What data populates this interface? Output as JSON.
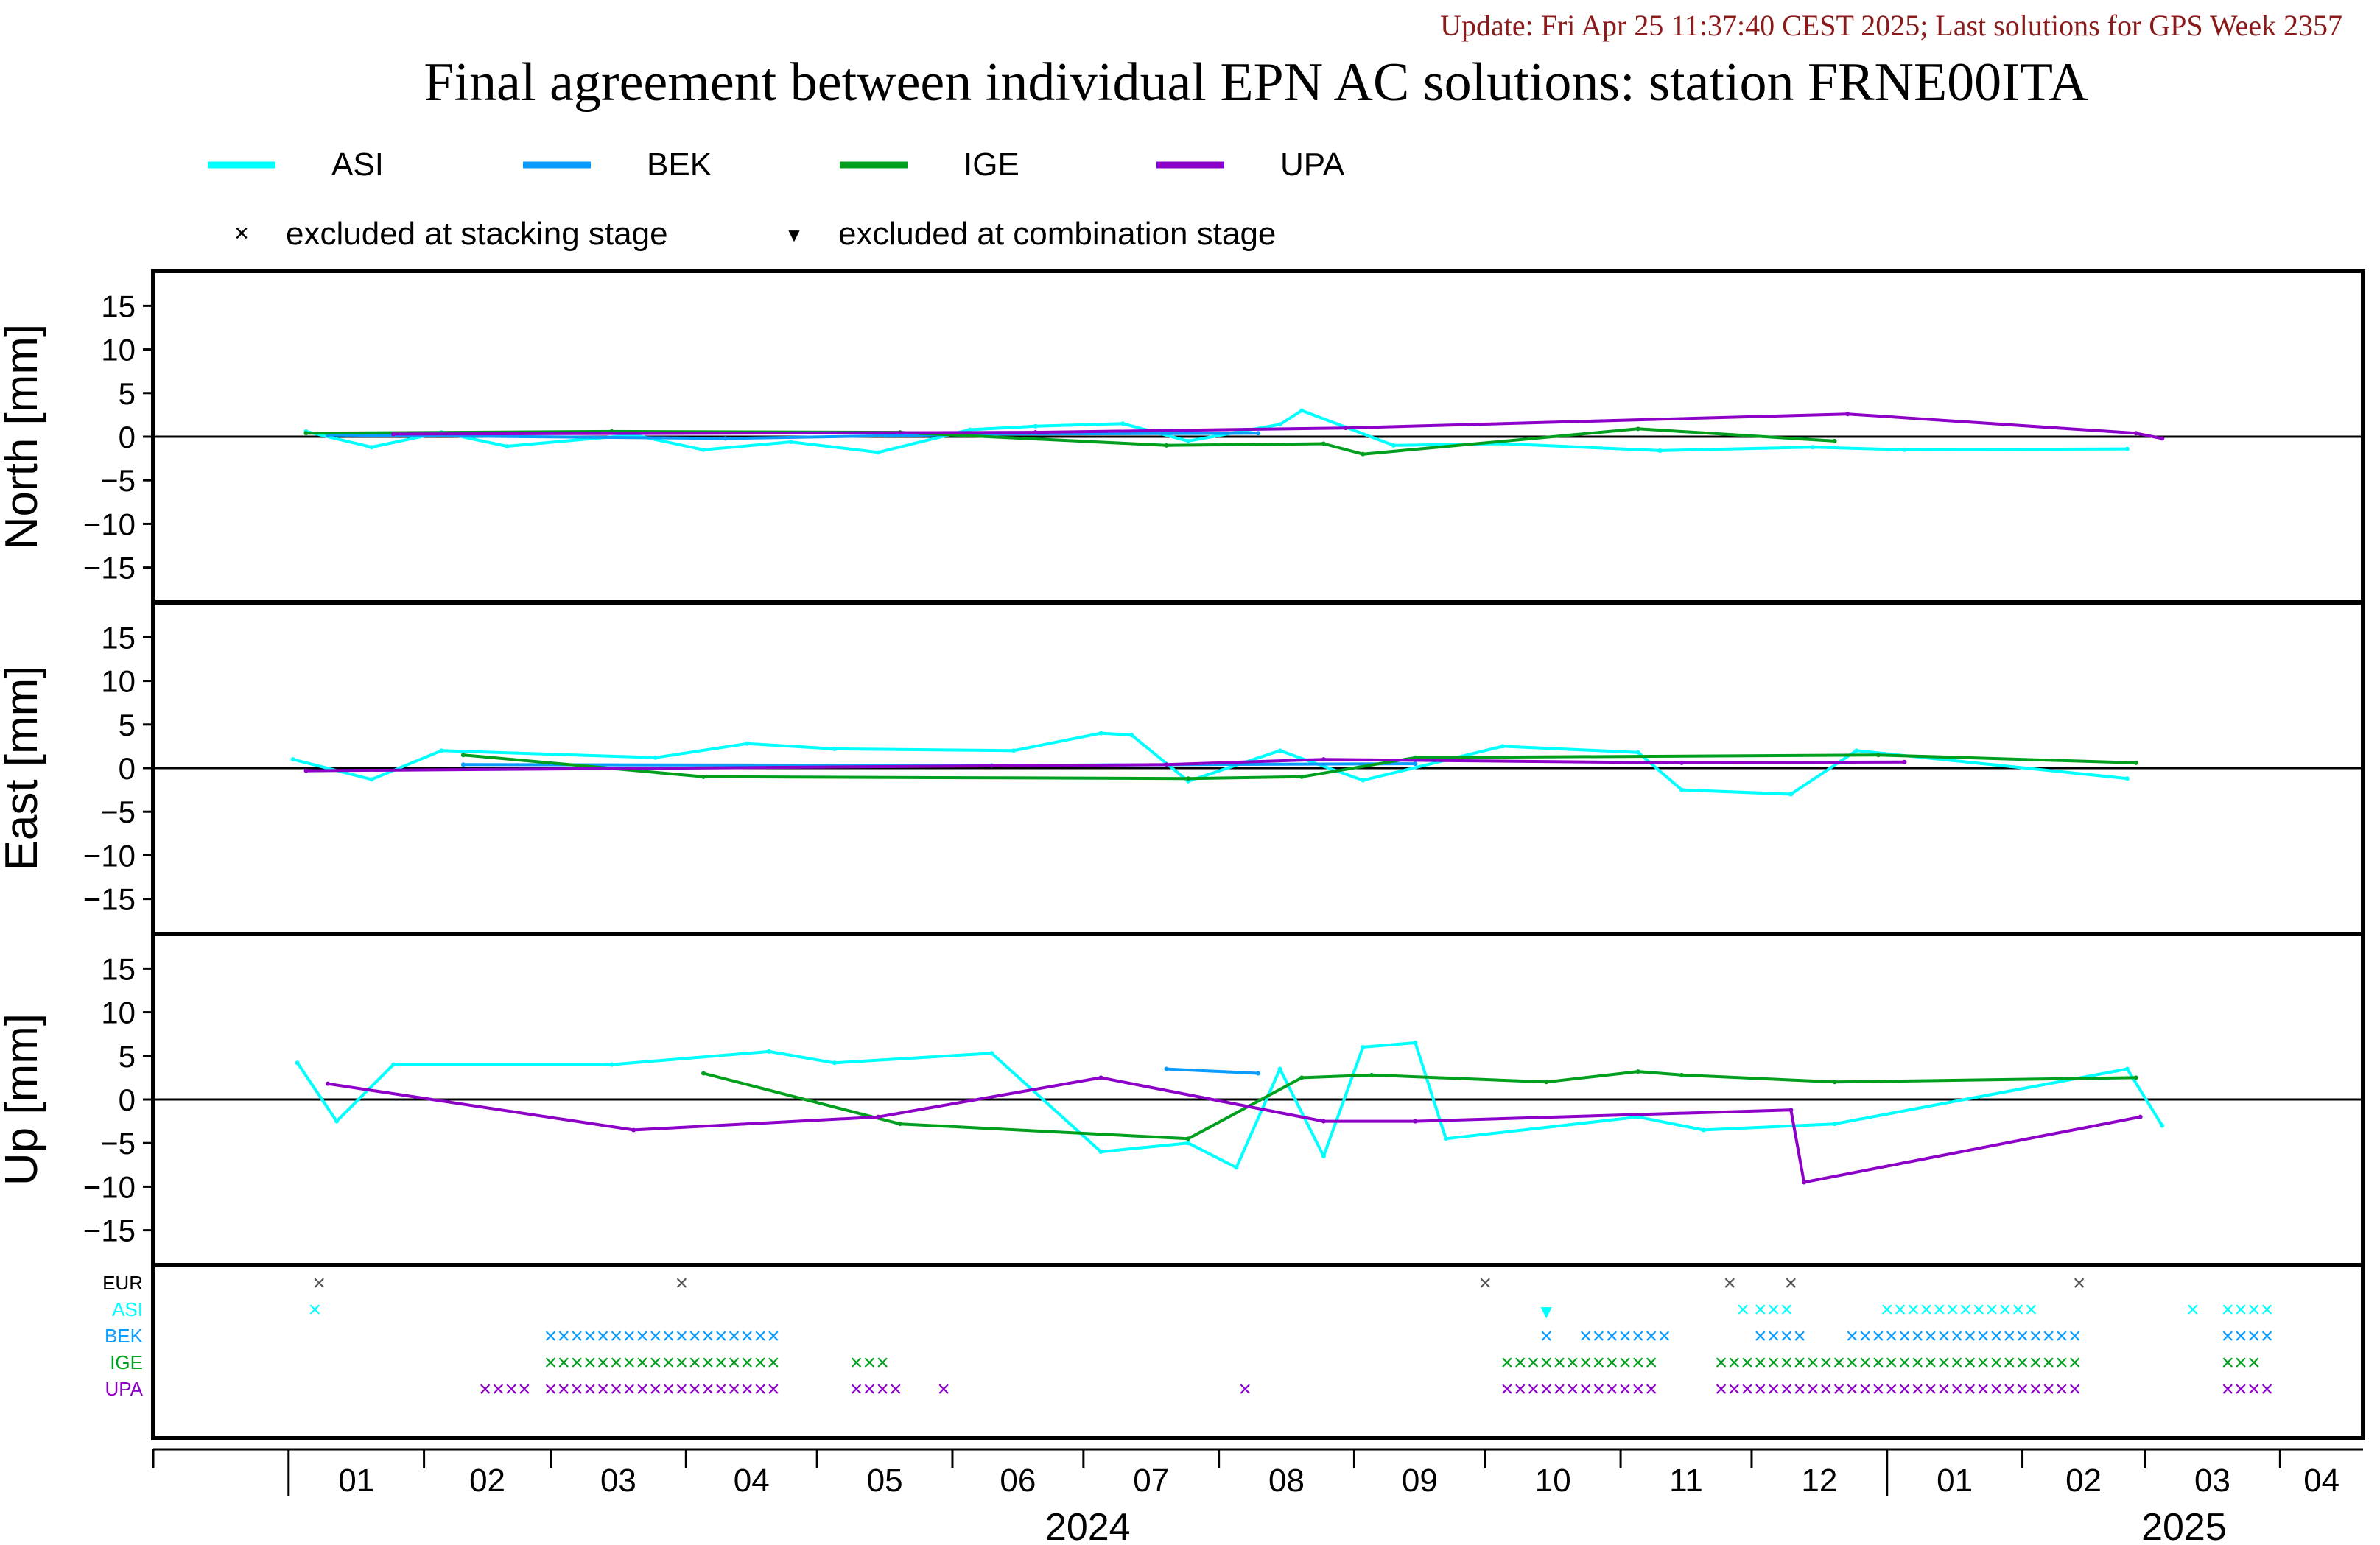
{
  "header": {
    "update": "Update: Fri Apr 25 11:37:40 CEST 2025; Last solutions for GPS Week 2357",
    "title": "Final agreement between individual EPN AC solutions: station FRNE00ITA"
  },
  "colors": {
    "ASI": "#00ffff",
    "BEK": "#0a9bff",
    "IGE": "#00a01e",
    "UPA": "#8c00c8",
    "EUR": "#000000"
  },
  "legend": {
    "series": [
      "ASI",
      "BEK",
      "IGE",
      "UPA"
    ],
    "stacking": "excluded at stacking stage",
    "combination": "excluded at combination stage"
  },
  "chart_data": {
    "type": "line",
    "x_axis": {
      "range": [
        "2023-12-01",
        "2025-04-20"
      ],
      "months": [
        "01",
        "02",
        "03",
        "04",
        "05",
        "06",
        "07",
        "08",
        "09",
        "10",
        "11",
        "12",
        "01",
        "02",
        "03",
        "04"
      ],
      "years": [
        "2024",
        "2025"
      ]
    },
    "panels": [
      {
        "ylabel": "North [mm]",
        "ylim": [
          -19,
          19
        ],
        "yticks": [
          15,
          10,
          5,
          0,
          -5,
          -10,
          -15
        ],
        "series": [
          {
            "name": "ASI",
            "points": [
              [
                "2024-01-05",
                0.6
              ],
              [
                "2024-01-20",
                -1.2
              ],
              [
                "2024-02-05",
                0.5
              ],
              [
                "2024-02-20",
                -1.1
              ],
              [
                "2024-03-20",
                0.2
              ],
              [
                "2024-04-05",
                -1.5
              ],
              [
                "2024-04-25",
                -0.6
              ],
              [
                "2024-05-15",
                -1.8
              ],
              [
                "2024-06-05",
                0.8
              ],
              [
                "2024-06-20",
                1.2
              ],
              [
                "2024-07-10",
                1.5
              ],
              [
                "2024-07-25",
                -0.5
              ],
              [
                "2024-08-15",
                1.4
              ],
              [
                "2024-08-20",
                3.0
              ],
              [
                "2024-09-10",
                -1.0
              ],
              [
                "2024-10-05",
                -0.8
              ],
              [
                "2024-11-10",
                -1.6
              ],
              [
                "2024-12-15",
                -1.2
              ],
              [
                "2025-01-05",
                -1.5
              ],
              [
                "2025-02-25",
                -1.4
              ]
            ]
          },
          {
            "name": "BEK",
            "points": [
              [
                "2024-01-10",
                0.2
              ],
              [
                "2024-04-10",
                -0.2
              ],
              [
                "2024-06-10",
                0.3
              ],
              [
                "2024-08-10",
                0.4
              ]
            ]
          },
          {
            "name": "IGE",
            "points": [
              [
                "2024-01-05",
                0.4
              ],
              [
                "2024-03-15",
                0.6
              ],
              [
                "2024-05-20",
                0.5
              ],
              [
                "2024-07-20",
                -1.0
              ],
              [
                "2024-08-25",
                -0.8
              ],
              [
                "2024-09-03",
                -2.0
              ],
              [
                "2024-11-05",
                0.9
              ],
              [
                "2024-12-20",
                -0.5
              ]
            ]
          },
          {
            "name": "UPA",
            "points": [
              [
                "2024-01-25",
                0.3
              ],
              [
                "2024-06-20",
                0.5
              ],
              [
                "2024-08-30",
                1.0
              ],
              [
                "2024-12-23",
                2.6
              ],
              [
                "2025-02-27",
                0.4
              ],
              [
                "2025-03-05",
                -0.2
              ]
            ]
          }
        ]
      },
      {
        "ylabel": "East [mm]",
        "ylim": [
          -19,
          19
        ],
        "yticks": [
          15,
          10,
          5,
          0,
          -5,
          -10,
          -15
        ],
        "series": [
          {
            "name": "ASI",
            "points": [
              [
                "2024-01-02",
                1.0
              ],
              [
                "2024-01-20",
                -1.3
              ],
              [
                "2024-02-05",
                2.0
              ],
              [
                "2024-03-25",
                1.2
              ],
              [
                "2024-04-15",
                2.8
              ],
              [
                "2024-05-05",
                2.2
              ],
              [
                "2024-06-15",
                2.0
              ],
              [
                "2024-07-05",
                4.0
              ],
              [
                "2024-07-12",
                3.8
              ],
              [
                "2024-07-25",
                -1.5
              ],
              [
                "2024-08-15",
                2.0
              ],
              [
                "2024-09-03",
                -1.4
              ],
              [
                "2024-10-05",
                2.5
              ],
              [
                "2024-11-05",
                1.8
              ],
              [
                "2024-11-15",
                -2.5
              ],
              [
                "2024-12-10",
                -3.0
              ],
              [
                "2024-12-25",
                2.0
              ],
              [
                "2025-02-25",
                -1.2
              ]
            ]
          },
          {
            "name": "BEK",
            "points": [
              [
                "2024-02-10",
                0.4
              ],
              [
                "2024-06-10",
                0.3
              ],
              [
                "2024-09-15",
                0.5
              ]
            ]
          },
          {
            "name": "IGE",
            "points": [
              [
                "2024-02-10",
                1.5
              ],
              [
                "2024-04-05",
                -1.0
              ],
              [
                "2024-07-25",
                -1.2
              ],
              [
                "2024-08-20",
                -1.0
              ],
              [
                "2024-09-15",
                1.2
              ],
              [
                "2024-12-30",
                1.5
              ],
              [
                "2025-02-27",
                0.6
              ]
            ]
          },
          {
            "name": "UPA",
            "points": [
              [
                "2024-01-05",
                -0.3
              ],
              [
                "2024-07-20",
                0.4
              ],
              [
                "2024-08-25",
                1.0
              ],
              [
                "2024-11-15",
                0.6
              ],
              [
                "2025-01-05",
                0.7
              ]
            ]
          }
        ]
      },
      {
        "ylabel": "Up [mm]",
        "ylim": [
          -19,
          19
        ],
        "yticks": [
          15,
          10,
          5,
          0,
          -5,
          -10,
          -15
        ],
        "series": [
          {
            "name": "ASI",
            "points": [
              [
                "2024-01-03",
                4.2
              ],
              [
                "2024-01-12",
                -2.5
              ],
              [
                "2024-01-25",
                4.0
              ],
              [
                "2024-03-15",
                4.0
              ],
              [
                "2024-04-20",
                5.5
              ],
              [
                "2024-05-05",
                4.2
              ],
              [
                "2024-06-10",
                5.3
              ],
              [
                "2024-07-05",
                -6.0
              ],
              [
                "2024-07-25",
                -5.0
              ],
              [
                "2024-08-05",
                -7.8
              ],
              [
                "2024-08-15",
                3.5
              ],
              [
                "2024-08-25",
                -6.5
              ],
              [
                "2024-09-03",
                6.0
              ],
              [
                "2024-09-15",
                6.5
              ],
              [
                "2024-09-22",
                -4.5
              ],
              [
                "2024-11-05",
                -2.0
              ],
              [
                "2024-11-20",
                -3.5
              ],
              [
                "2024-12-20",
                -2.8
              ],
              [
                "2025-02-25",
                3.5
              ],
              [
                "2025-03-05",
                -3.0
              ]
            ]
          },
          {
            "name": "BEK",
            "points": [
              [
                "2024-07-20",
                3.5
              ],
              [
                "2024-08-10",
                3.0
              ]
            ]
          },
          {
            "name": "IGE",
            "points": [
              [
                "2024-04-05",
                3.0
              ],
              [
                "2024-05-20",
                -2.8
              ],
              [
                "2024-07-25",
                -4.5
              ],
              [
                "2024-08-20",
                2.5
              ],
              [
                "2024-09-05",
                2.8
              ],
              [
                "2024-10-15",
                2.0
              ],
              [
                "2024-11-05",
                3.2
              ],
              [
                "2024-11-15",
                2.8
              ],
              [
                "2024-12-20",
                2.0
              ],
              [
                "2025-02-27",
                2.5
              ]
            ]
          },
          {
            "name": "UPA",
            "points": [
              [
                "2024-01-10",
                1.8
              ],
              [
                "2024-03-20",
                -3.5
              ],
              [
                "2024-05-15",
                -2.0
              ],
              [
                "2024-07-05",
                2.5
              ],
              [
                "2024-08-25",
                -2.5
              ],
              [
                "2024-09-15",
                -2.5
              ],
              [
                "2024-12-13",
                -9.5
              ],
              [
                "2024-12-10",
                -1.2
              ],
              [
                "2025-02-28",
                -2.0
              ]
            ]
          }
        ]
      }
    ],
    "exclusions": {
      "rows": [
        "EUR",
        "ASI",
        "BEK",
        "IGE",
        "UPA"
      ],
      "stacking": {
        "EUR": [
          "2024-01-08",
          "2024-03-31",
          "2024-10-01",
          "2024-11-26",
          "2024-12-10",
          "2025-02-14"
        ],
        "ASI": [
          "2024-01-07",
          "2024-11-29",
          "2024-12-03",
          "2024-12-06",
          "2024-12-09",
          "2025-01-01",
          "2025-01-04",
          "2025-01-07",
          "2025-01-10",
          "2025-01-13",
          "2025-01-16",
          "2025-01-19",
          "2025-01-22",
          "2025-01-25",
          "2025-01-28",
          "2025-01-31",
          "2025-02-03",
          "2025-03-12",
          "2025-03-20",
          "2025-03-23",
          "2025-03-26",
          "2025-03-29"
        ],
        "BEK": [
          "2024-03-01",
          "2024-03-04",
          "2024-03-07",
          "2024-03-10",
          "2024-03-13",
          "2024-03-16",
          "2024-03-19",
          "2024-03-22",
          "2024-03-25",
          "2024-03-28",
          "2024-03-31",
          "2024-04-03",
          "2024-04-06",
          "2024-04-09",
          "2024-04-12",
          "2024-04-15",
          "2024-04-18",
          "2024-04-21",
          "2024-10-15",
          "2024-10-24",
          "2024-10-27",
          "2024-10-30",
          "2024-11-02",
          "2024-11-05",
          "2024-11-08",
          "2024-11-11",
          "2024-12-03",
          "2024-12-06",
          "2024-12-09",
          "2024-12-12",
          "2024-12-24",
          "2024-12-27",
          "2024-12-30",
          "2025-01-02",
          "2025-01-05",
          "2025-01-08",
          "2025-01-11",
          "2025-01-14",
          "2025-01-17",
          "2025-01-20",
          "2025-01-23",
          "2025-01-26",
          "2025-01-29",
          "2025-02-01",
          "2025-02-04",
          "2025-02-07",
          "2025-02-10",
          "2025-02-13",
          "2025-03-20",
          "2025-03-23",
          "2025-03-26",
          "2025-03-29"
        ],
        "IGE": [
          "2024-03-01",
          "2024-03-04",
          "2024-03-07",
          "2024-03-10",
          "2024-03-13",
          "2024-03-16",
          "2024-03-19",
          "2024-03-22",
          "2024-03-25",
          "2024-03-28",
          "2024-03-31",
          "2024-04-03",
          "2024-04-06",
          "2024-04-09",
          "2024-04-12",
          "2024-04-15",
          "2024-04-18",
          "2024-04-21",
          "2024-05-10",
          "2024-05-13",
          "2024-05-16",
          "2024-10-06",
          "2024-10-09",
          "2024-10-12",
          "2024-10-15",
          "2024-10-18",
          "2024-10-21",
          "2024-10-24",
          "2024-10-27",
          "2024-10-30",
          "2024-11-02",
          "2024-11-05",
          "2024-11-08",
          "2024-11-24",
          "2024-11-27",
          "2024-11-30",
          "2024-12-03",
          "2024-12-06",
          "2024-12-09",
          "2024-12-12",
          "2024-12-15",
          "2024-12-18",
          "2024-12-21",
          "2024-12-24",
          "2024-12-27",
          "2024-12-30",
          "2025-01-02",
          "2025-01-05",
          "2025-01-08",
          "2025-01-11",
          "2025-01-14",
          "2025-01-17",
          "2025-01-20",
          "2025-01-23",
          "2025-01-26",
          "2025-01-29",
          "2025-02-01",
          "2025-02-04",
          "2025-02-07",
          "2025-02-10",
          "2025-02-13",
          "2025-03-20",
          "2025-03-23",
          "2025-03-26"
        ],
        "UPA": [
          "2024-02-15",
          "2024-02-18",
          "2024-02-21",
          "2024-02-24",
          "2024-03-01",
          "2024-03-04",
          "2024-03-07",
          "2024-03-10",
          "2024-03-13",
          "2024-03-16",
          "2024-03-19",
          "2024-03-22",
          "2024-03-25",
          "2024-03-28",
          "2024-03-31",
          "2024-04-03",
          "2024-04-06",
          "2024-04-09",
          "2024-04-12",
          "2024-04-15",
          "2024-04-18",
          "2024-04-21",
          "2024-05-10",
          "2024-05-13",
          "2024-05-16",
          "2024-05-19",
          "2024-05-30",
          "2024-08-07",
          "2024-10-06",
          "2024-10-09",
          "2024-10-12",
          "2024-10-15",
          "2024-10-18",
          "2024-10-21",
          "2024-10-24",
          "2024-10-27",
          "2024-10-30",
          "2024-11-02",
          "2024-11-05",
          "2024-11-08",
          "2024-11-24",
          "2024-11-27",
          "2024-11-30",
          "2024-12-03",
          "2024-12-06",
          "2024-12-09",
          "2024-12-12",
          "2024-12-15",
          "2024-12-18",
          "2024-12-21",
          "2024-12-24",
          "2024-12-27",
          "2024-12-30",
          "2025-01-02",
          "2025-01-05",
          "2025-01-08",
          "2025-01-11",
          "2025-01-14",
          "2025-01-17",
          "2025-01-20",
          "2025-01-23",
          "2025-01-26",
          "2025-01-29",
          "2025-02-01",
          "2025-02-04",
          "2025-02-07",
          "2025-02-10",
          "2025-02-13",
          "2025-03-20",
          "2025-03-23",
          "2025-03-26",
          "2025-03-29"
        ]
      },
      "combination": {
        "ASI": [
          "2024-10-15"
        ]
      }
    }
  }
}
